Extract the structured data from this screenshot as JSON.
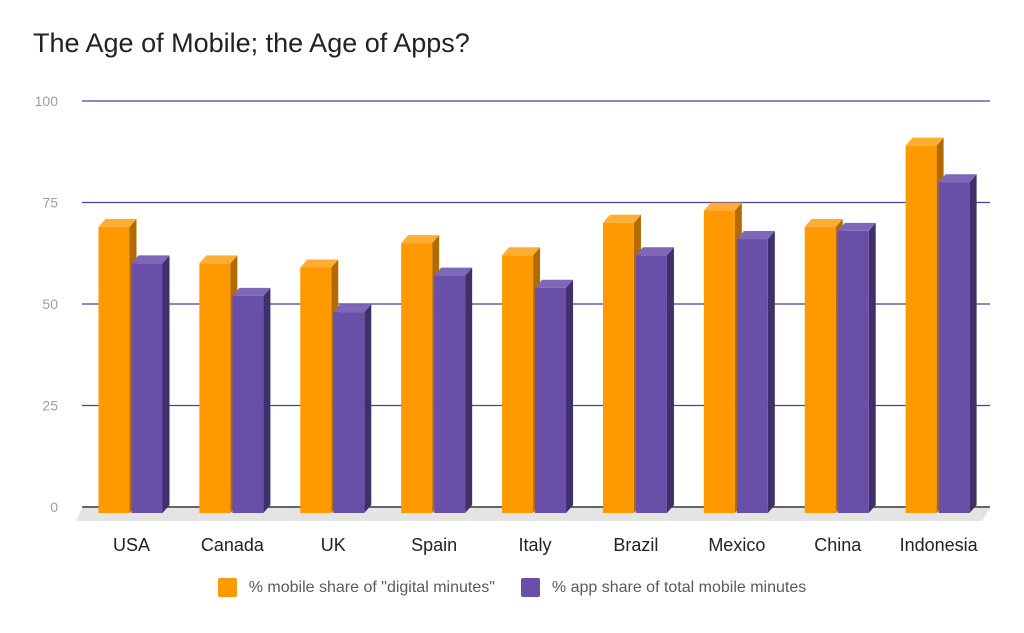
{
  "chart_data": {
    "type": "bar",
    "title": "The Age of Mobile; the Age of Apps?",
    "categories": [
      "USA",
      "Canada",
      "UK",
      "Spain",
      "Italy",
      "Brazil",
      "Mexico",
      "China",
      "Indonesia"
    ],
    "series": [
      {
        "name": "% mobile share of \"digital minutes\"",
        "color": "#ff9900",
        "top_color": "#ffad33",
        "side_color": "#b36b00",
        "values": [
          69,
          60,
          59,
          65,
          62,
          70,
          73,
          69,
          89
        ]
      },
      {
        "name": "% app share of total mobile minutes",
        "color": "#6a4fa8",
        "top_color": "#7e66b8",
        "side_color": "#3f2f6a",
        "values": [
          60,
          52,
          48,
          57,
          54,
          62,
          66,
          68,
          80
        ]
      }
    ],
    "ylim": [
      0,
      100
    ],
    "yticks": [
      "0",
      "25",
      "50",
      "75",
      "100"
    ],
    "xlabel": "",
    "ylabel": "",
    "grid": true,
    "grid_color": "#4b3f9c",
    "legend_position": "bottom"
  }
}
